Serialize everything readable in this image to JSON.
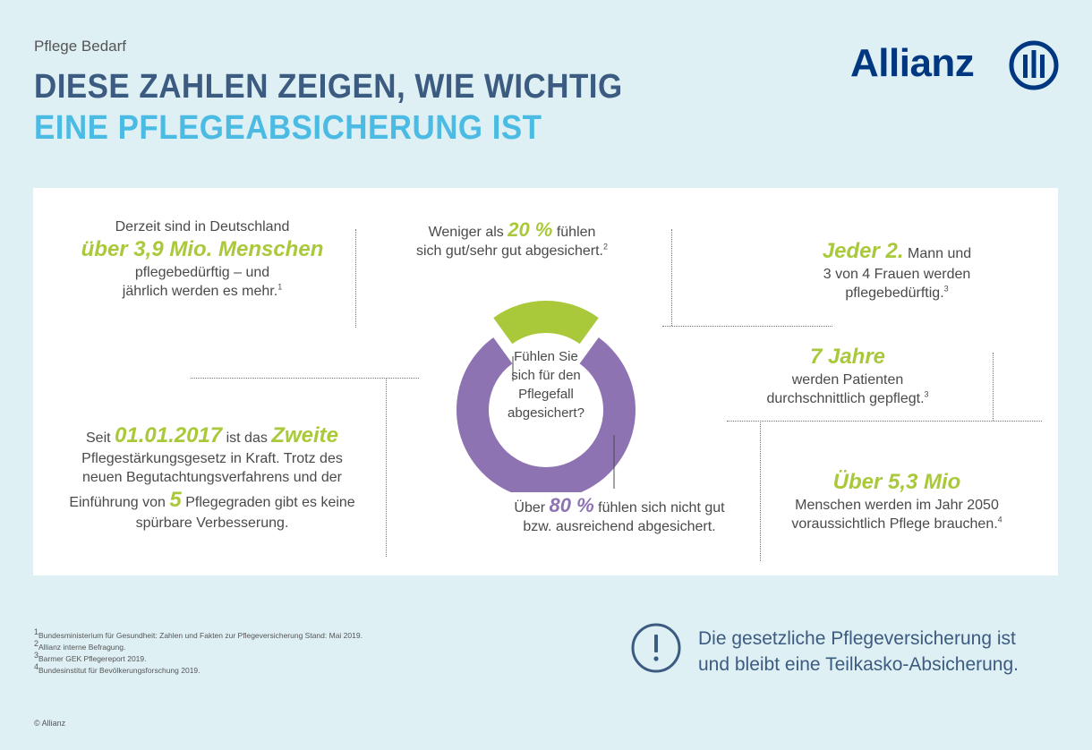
{
  "header": {
    "subtitle": "Pflege Bedarf",
    "title_line1": "DIESE ZAHLEN ZEIGEN, WIE WICHTIG",
    "title_line2": "EINE PFLEGEABSICHERUNG IST",
    "logo_text": "Allianz"
  },
  "colors": {
    "navy": "#3c5b80",
    "cyan": "#4bbbe3",
    "green": "#a9c93a",
    "purple": "#8e73b3",
    "background": "#dff0f5"
  },
  "facts": {
    "people": {
      "line1": "Derzeit sind in Deutschland",
      "highlight": "über 3,9 Mio. Menschen",
      "line2": "pflegebedürftig – und",
      "line3": "jährlich werden es mehr.",
      "ref": "1"
    },
    "every_second": {
      "highlight": "Jeder 2.",
      "line1": "Mann und",
      "line2": "3 von 4 Frauen werden",
      "line3": "pflegebedürftig.",
      "ref": "3"
    },
    "years": {
      "highlight": "7 Jahre",
      "line1": "werden Patienten",
      "line2": "durchschnittlich gepflegt.",
      "ref": "3"
    },
    "law": {
      "pre": "Seit",
      "date": "01.01.2017",
      "mid": "ist das",
      "highlight": "Zweite",
      "line2": "Pflegestärkungsgesetz in Kraft. Trotz des",
      "line3": "neuen Begutachtungsverfahrens und der",
      "line4_pre": "Einführung von",
      "number": "5",
      "line4_post": "Pflegegraden gibt es keine",
      "line5": "spürbare Verbesserung."
    },
    "future": {
      "highlight": "Über 5,3 Mio",
      "line1": "Menschen werden im Jahr 2050",
      "line2": "voraussichtlich Pflege brauchen.",
      "ref": "4"
    }
  },
  "chart_data": {
    "type": "pie",
    "donut": true,
    "center_label": [
      "Fühlen Sie",
      "sich für den",
      "Pflegefall",
      "abgesichert?"
    ],
    "series": [
      {
        "name": "gut/sehr gut abgesichert",
        "value": 20,
        "color": "#a9c93a"
      },
      {
        "name": "nicht gut bzw. ausreichend abgesichert",
        "value": 80,
        "color": "#8e73b3"
      }
    ],
    "top_label": {
      "pre": "Weniger als",
      "value": "20 %",
      "post": "fühlen",
      "line2": "sich gut/sehr gut abgesichert.",
      "ref": "2"
    },
    "bottom_label": {
      "pre": "Über",
      "value": "80 %",
      "post": "fühlen sich nicht gut",
      "line2": "bzw. ausreichend abgesichert."
    }
  },
  "footnotes": [
    {
      "n": "1",
      "text": "Bundesministerium für Gesundheit: Zahlen und Fakten zur Pflegeversicherung Stand: Mai 2019."
    },
    {
      "n": "2",
      "text": "Allianz interne Befragung."
    },
    {
      "n": "3",
      "text": "Barmer GEK Pflegereport 2019."
    },
    {
      "n": "4",
      "text": "Bundesinstitut für Bevölkerungsforschung 2019."
    }
  ],
  "copyright": "© Allianz",
  "notice": {
    "icon": "exclamation-icon",
    "line1": "Die gesetzliche Pflegeversicherung ist",
    "line2": "und bleibt eine Teilkasko-Absicherung."
  }
}
